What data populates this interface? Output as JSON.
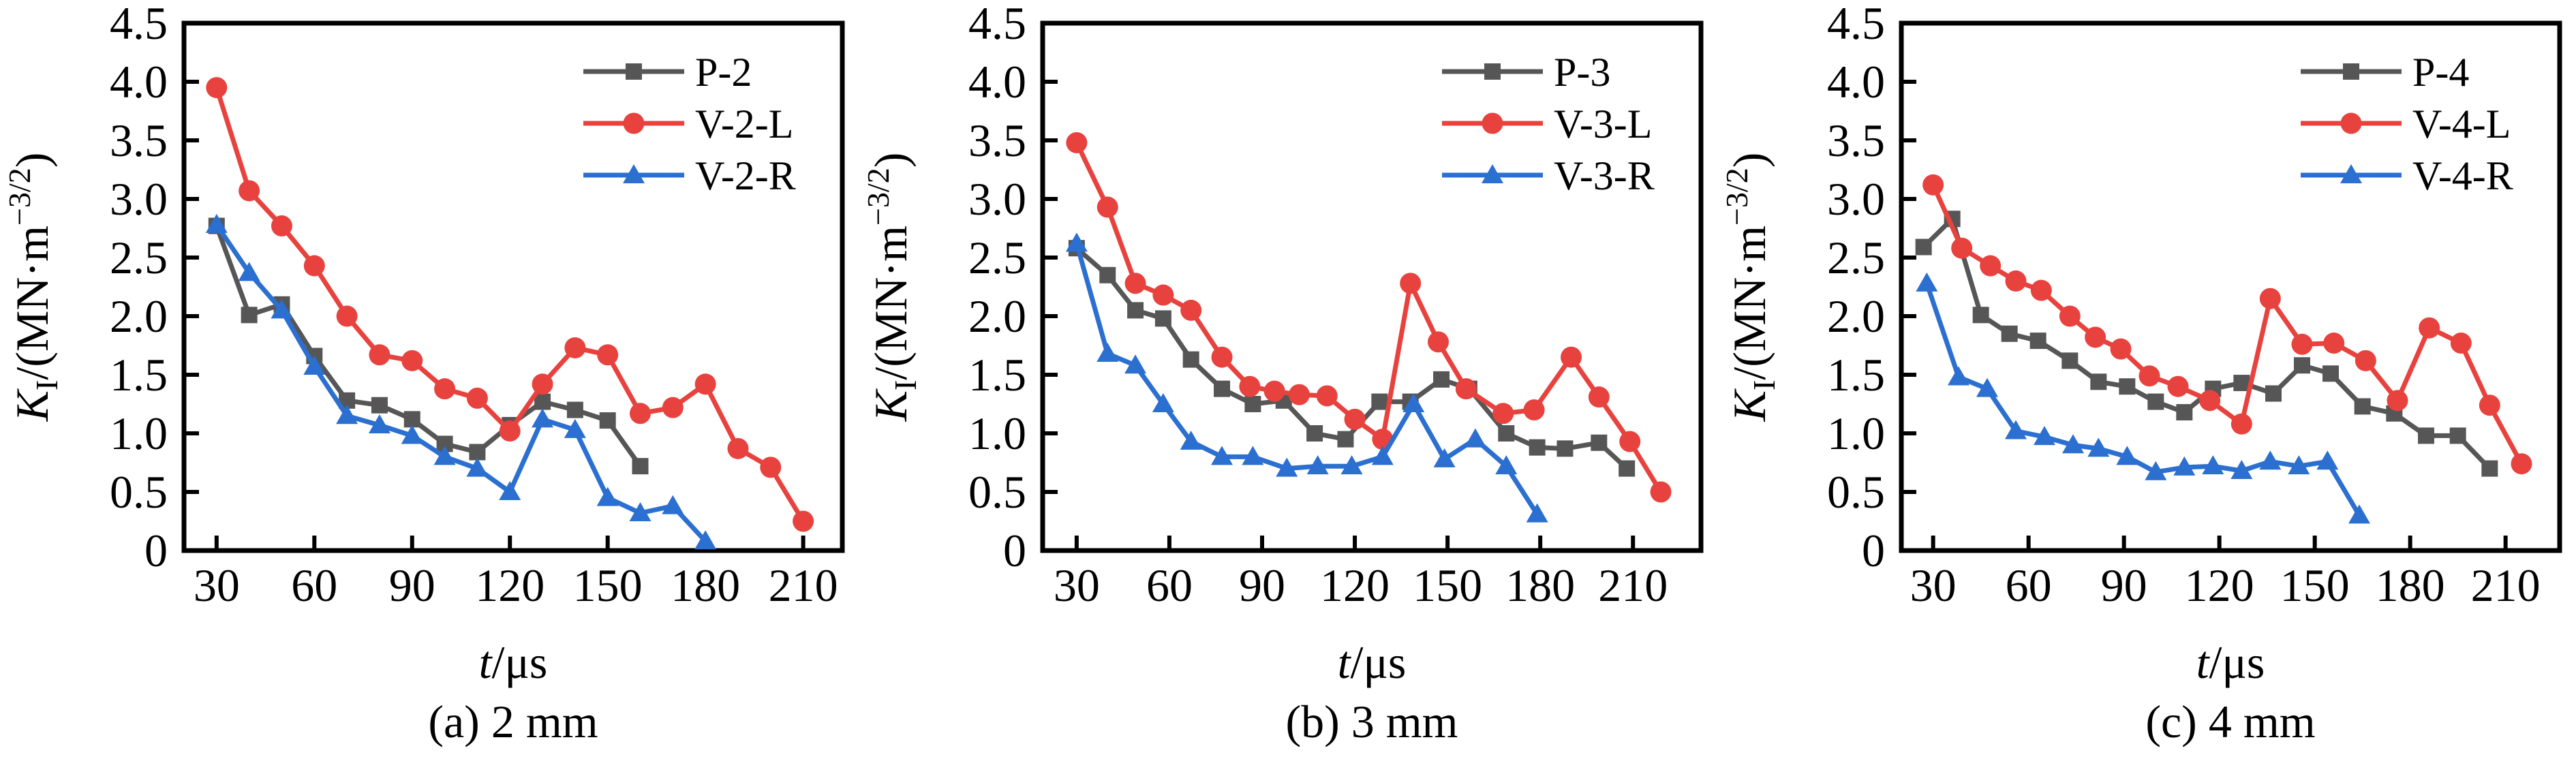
{
  "figure": {
    "background": "#ffffff",
    "axis_color": "#000000",
    "text_color": "#000000",
    "ylabel": "KI/(MN·m−3/2)",
    "ylabel_parts": {
      "var": "K",
      "sub": "I",
      "mid": "/(MN·m",
      "sup": "−3/2",
      "end": ")"
    },
    "xlabel": "t/μs",
    "xlabel_parts": {
      "var": "t",
      "rest": "/μs"
    }
  },
  "chart_data": [
    {
      "type": "line",
      "caption": "(a) 2 mm",
      "xlabel": "t/μs",
      "ylabel": "KI/(MN·m−3/2)",
      "xlim": [
        20,
        222
      ],
      "ylim": [
        0,
        4.5
      ],
      "x_ticks": [
        30,
        60,
        90,
        120,
        150,
        180,
        210
      ],
      "y_ticks": [
        0,
        0.5,
        1.0,
        1.5,
        2.0,
        2.5,
        3.0,
        3.5,
        4.0,
        4.5
      ],
      "grid": false,
      "legend_position": "top-right",
      "series": [
        {
          "name": "P-2",
          "color": "#565656",
          "marker": "square",
          "points": [
            [
              30,
              2.77
            ],
            [
              40,
              2.01
            ],
            [
              50,
              2.1
            ],
            [
              60,
              1.66
            ],
            [
              70,
              1.28
            ],
            [
              80,
              1.24
            ],
            [
              90,
              1.12
            ],
            [
              100,
              0.91
            ],
            [
              110,
              0.84
            ],
            [
              120,
              1.07
            ],
            [
              130,
              1.27
            ],
            [
              140,
              1.2
            ],
            [
              150,
              1.11
            ],
            [
              160,
              0.72
            ]
          ]
        },
        {
          "name": "V-2-L",
          "color": "#e8423e",
          "marker": "circle",
          "points": [
            [
              30,
              3.95
            ],
            [
              40,
              3.07
            ],
            [
              50,
              2.77
            ],
            [
              60,
              2.43
            ],
            [
              70,
              2.0
            ],
            [
              80,
              1.67
            ],
            [
              90,
              1.62
            ],
            [
              100,
              1.38
            ],
            [
              110,
              1.3
            ],
            [
              120,
              1.02
            ],
            [
              130,
              1.42
            ],
            [
              140,
              1.73
            ],
            [
              150,
              1.67
            ],
            [
              160,
              1.17
            ],
            [
              170,
              1.22
            ],
            [
              180,
              1.42
            ],
            [
              190,
              0.87
            ],
            [
              200,
              0.71
            ],
            [
              210,
              0.25
            ]
          ]
        },
        {
          "name": "V-2-R",
          "color": "#2b6fd0",
          "marker": "triangle",
          "points": [
            [
              30,
              2.78
            ],
            [
              40,
              2.37
            ],
            [
              50,
              2.05
            ],
            [
              60,
              1.57
            ],
            [
              70,
              1.15
            ],
            [
              80,
              1.07
            ],
            [
              90,
              0.98
            ],
            [
              100,
              0.8
            ],
            [
              110,
              0.7
            ],
            [
              120,
              0.5
            ],
            [
              130,
              1.12
            ],
            [
              140,
              1.03
            ],
            [
              150,
              0.45
            ],
            [
              160,
              0.32
            ],
            [
              170,
              0.38
            ],
            [
              180,
              0.08
            ]
          ]
        }
      ]
    },
    {
      "type": "line",
      "caption": "(b) 3 mm",
      "xlabel": "t/μs",
      "ylabel": "KI/(MN·m−3/2)",
      "xlim": [
        19,
        232
      ],
      "ylim": [
        0,
        4.5
      ],
      "x_ticks": [
        30,
        60,
        90,
        120,
        150,
        180,
        210
      ],
      "y_ticks": [
        0,
        0.5,
        1.0,
        1.5,
        2.0,
        2.5,
        3.0,
        3.5,
        4.0,
        4.5
      ],
      "grid": false,
      "legend_position": "top-right",
      "series": [
        {
          "name": "P-3",
          "color": "#565656",
          "marker": "square",
          "points": [
            [
              30,
              2.58
            ],
            [
              40,
              2.35
            ],
            [
              49,
              2.05
            ],
            [
              58,
              1.98
            ],
            [
              67,
              1.63
            ],
            [
              77,
              1.38
            ],
            [
              87,
              1.25
            ],
            [
              97,
              1.28
            ],
            [
              107,
              1.0
            ],
            [
              117,
              0.95
            ],
            [
              128,
              1.27
            ],
            [
              138,
              1.27
            ],
            [
              148,
              1.46
            ],
            [
              157,
              1.38
            ],
            [
              169,
              1.0
            ],
            [
              179,
              0.88
            ],
            [
              188,
              0.87
            ],
            [
              199,
              0.92
            ],
            [
              208,
              0.7
            ]
          ]
        },
        {
          "name": "V-3-L",
          "color": "#e8423e",
          "marker": "circle",
          "points": [
            [
              30,
              3.48
            ],
            [
              40,
              2.93
            ],
            [
              49,
              2.28
            ],
            [
              58,
              2.18
            ],
            [
              67,
              2.05
            ],
            [
              77,
              1.65
            ],
            [
              86,
              1.4
            ],
            [
              94,
              1.36
            ],
            [
              102,
              1.33
            ],
            [
              111,
              1.32
            ],
            [
              120,
              1.12
            ],
            [
              129,
              0.95
            ],
            [
              138,
              2.28
            ],
            [
              147,
              1.78
            ],
            [
              156,
              1.38
            ],
            [
              168,
              1.17
            ],
            [
              178,
              1.2
            ],
            [
              190,
              1.65
            ],
            [
              199,
              1.31
            ],
            [
              209,
              0.93
            ],
            [
              219,
              0.5
            ]
          ]
        },
        {
          "name": "V-3-R",
          "color": "#2b6fd0",
          "marker": "triangle",
          "points": [
            [
              30,
              2.62
            ],
            [
              40,
              1.68
            ],
            [
              49,
              1.58
            ],
            [
              58,
              1.25
            ],
            [
              67,
              0.93
            ],
            [
              77,
              0.8
            ],
            [
              87,
              0.8
            ],
            [
              98,
              0.7
            ],
            [
              108,
              0.72
            ],
            [
              119,
              0.72
            ],
            [
              129,
              0.8
            ],
            [
              139,
              1.25
            ],
            [
              149,
              0.78
            ],
            [
              159,
              0.95
            ],
            [
              169,
              0.72
            ],
            [
              179,
              0.31
            ]
          ]
        }
      ]
    },
    {
      "type": "line",
      "caption": "(c) 4 mm",
      "xlabel": "t/μs",
      "ylabel": "KI/(MN·m−3/2)",
      "xlim": [
        20,
        227
      ],
      "ylim": [
        0,
        4.5
      ],
      "x_ticks": [
        30,
        60,
        90,
        120,
        150,
        180,
        210
      ],
      "y_ticks": [
        0,
        0.5,
        1.0,
        1.5,
        2.0,
        2.5,
        3.0,
        3.5,
        4.0,
        4.5
      ],
      "grid": false,
      "legend_position": "top-right",
      "series": [
        {
          "name": "P-4",
          "color": "#565656",
          "marker": "square",
          "points": [
            [
              27,
              2.59
            ],
            [
              36,
              2.83
            ],
            [
              45,
              2.01
            ],
            [
              54,
              1.85
            ],
            [
              63,
              1.79
            ],
            [
              73,
              1.62
            ],
            [
              82,
              1.44
            ],
            [
              91,
              1.4
            ],
            [
              100,
              1.27
            ],
            [
              109,
              1.18
            ],
            [
              118,
              1.38
            ],
            [
              127,
              1.43
            ],
            [
              137,
              1.34
            ],
            [
              146,
              1.58
            ],
            [
              155,
              1.51
            ],
            [
              165,
              1.23
            ],
            [
              175,
              1.17
            ],
            [
              185,
              0.98
            ],
            [
              195,
              0.98
            ],
            [
              205,
              0.7
            ]
          ]
        },
        {
          "name": "V-4-L",
          "color": "#e8423e",
          "marker": "circle",
          "points": [
            [
              30,
              3.12
            ],
            [
              39,
              2.58
            ],
            [
              48,
              2.43
            ],
            [
              56,
              2.3
            ],
            [
              64,
              2.22
            ],
            [
              73,
              2.0
            ],
            [
              81,
              1.82
            ],
            [
              89,
              1.72
            ],
            [
              98,
              1.49
            ],
            [
              107,
              1.4
            ],
            [
              117,
              1.28
            ],
            [
              127,
              1.08
            ],
            [
              136,
              2.15
            ],
            [
              146,
              1.76
            ],
            [
              156,
              1.77
            ],
            [
              166,
              1.62
            ],
            [
              176,
              1.28
            ],
            [
              186,
              1.9
            ],
            [
              196,
              1.77
            ],
            [
              205,
              1.24
            ],
            [
              215,
              0.74
            ]
          ]
        },
        {
          "name": "V-4-R",
          "color": "#2b6fd0",
          "marker": "triangle",
          "points": [
            [
              28,
              2.28
            ],
            [
              38,
              1.48
            ],
            [
              47,
              1.38
            ],
            [
              56,
              1.02
            ],
            [
              65,
              0.97
            ],
            [
              74,
              0.9
            ],
            [
              82,
              0.87
            ],
            [
              91,
              0.8
            ],
            [
              100,
              0.67
            ],
            [
              109,
              0.71
            ],
            [
              118,
              0.72
            ],
            [
              127,
              0.68
            ],
            [
              136,
              0.76
            ],
            [
              145,
              0.72
            ],
            [
              154,
              0.76
            ],
            [
              164,
              0.3
            ]
          ]
        }
      ]
    }
  ]
}
